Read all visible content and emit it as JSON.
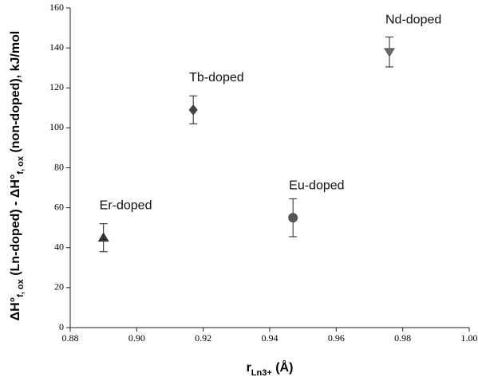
{
  "chart_data": {
    "type": "scatter",
    "x_label": [
      "r",
      "Ln3+",
      " (Å)"
    ],
    "y_label": [
      "ΔH°",
      "f, ox",
      " (Ln-doped) - ΔH°",
      "f, ox",
      " (non-doped), kJ/mol"
    ],
    "series": [
      {
        "name": "Er-doped",
        "marker": "triangle-up",
        "color": "#333333",
        "x": [
          0.89
        ],
        "values": [
          45
        ],
        "errors": [
          7
        ]
      },
      {
        "name": "Tb-doped",
        "marker": "diamond",
        "color": "#444444",
        "x": [
          0.917
        ],
        "values": [
          109
        ],
        "errors": [
          7
        ]
      },
      {
        "name": "Eu-doped",
        "marker": "circle",
        "color": "#555555",
        "x": [
          0.947
        ],
        "values": [
          55
        ],
        "errors": [
          9.5
        ]
      },
      {
        "name": "Nd-doped",
        "marker": "triangle-down",
        "color": "#666666",
        "x": [
          0.976
        ],
        "values": [
          138
        ],
        "errors": [
          7.5
        ]
      }
    ],
    "xlim": [
      0.88,
      1.0
    ],
    "xticks": [
      0.88,
      {
        "value": 0.9,
        "label": "0.90"
      },
      0.92,
      0.94,
      0.96,
      0.98,
      {
        "value": 1.0,
        "label": "1.00"
      }
    ],
    "ylim": [
      0,
      160
    ],
    "yticks": [
      0,
      20,
      40,
      60,
      80,
      100,
      120,
      140,
      160
    ]
  }
}
